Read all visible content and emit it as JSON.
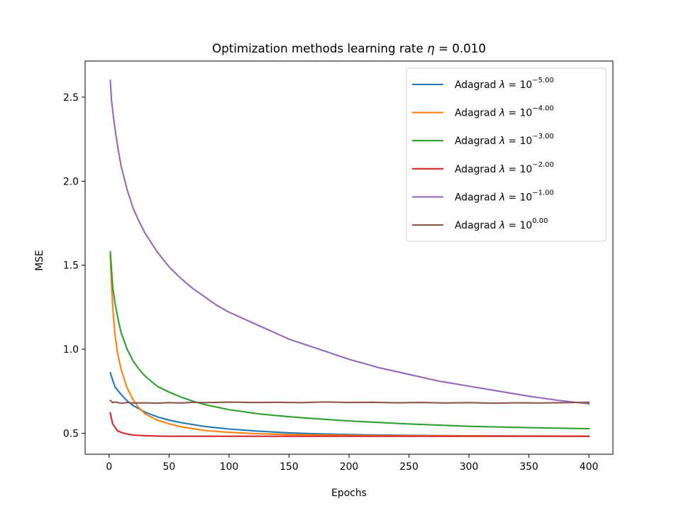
{
  "chart_data": {
    "type": "line",
    "title_text": "Optimization methods learning rate ",
    "title_symbol": "η",
    "title_rest": " = 0.010",
    "xlabel": "Epochs",
    "ylabel": "MSE",
    "xlim": [
      -20,
      420
    ],
    "ylim": [
      0.375,
      2.715
    ],
    "xticks": [
      0,
      50,
      100,
      150,
      200,
      250,
      300,
      350,
      400
    ],
    "yticks": [
      0.5,
      1.0,
      1.5,
      2.0,
      2.5
    ],
    "ytick_labels": [
      "0.5",
      "1.0",
      "1.5",
      "2.0",
      "2.5"
    ],
    "grid": false,
    "legend_position": "top-right",
    "legend_prefix": "Adagrad ",
    "legend_symbol": "λ",
    "legend_eq": " = 10",
    "series": [
      {
        "name": "Adagrad λ = 10^-5.00",
        "exponent": "−5.00",
        "color": "#1f77b4",
        "x": [
          1,
          3,
          5,
          10,
          15,
          20,
          30,
          40,
          50,
          60,
          80,
          100,
          125,
          150,
          175,
          200,
          250,
          300,
          350,
          400
        ],
        "y": [
          0.86,
          0.815,
          0.775,
          0.73,
          0.693,
          0.665,
          0.625,
          0.598,
          0.578,
          0.563,
          0.54,
          0.525,
          0.512,
          0.502,
          0.496,
          0.492,
          0.487,
          0.484,
          0.483,
          0.482
        ]
      },
      {
        "name": "Adagrad λ = 10^-4.00",
        "exponent": "−4.00",
        "color": "#ff7f0e",
        "x": [
          1,
          2,
          3,
          4,
          5,
          7,
          10,
          15,
          20,
          25,
          30,
          40,
          50,
          60,
          80,
          100,
          125,
          150,
          200,
          250,
          300,
          350,
          400
        ],
        "y": [
          1.56,
          1.38,
          1.26,
          1.16,
          1.08,
          0.98,
          0.88,
          0.77,
          0.7,
          0.65,
          0.615,
          0.578,
          0.556,
          0.538,
          0.516,
          0.505,
          0.497,
          0.492,
          0.487,
          0.485,
          0.484,
          0.483,
          0.482
        ]
      },
      {
        "name": "Adagrad λ = 10^-3.00",
        "exponent": "−3.00",
        "color": "#2ca02c",
        "x": [
          1,
          3,
          5,
          8,
          10,
          15,
          20,
          25,
          30,
          40,
          50,
          60,
          70,
          80,
          100,
          125,
          150,
          175,
          200,
          250,
          300,
          350,
          400
        ],
        "y": [
          1.58,
          1.37,
          1.27,
          1.16,
          1.1,
          1.0,
          0.93,
          0.88,
          0.84,
          0.78,
          0.745,
          0.715,
          0.69,
          0.67,
          0.64,
          0.615,
          0.598,
          0.585,
          0.573,
          0.555,
          0.541,
          0.533,
          0.527
        ]
      },
      {
        "name": "Adagrad λ = 10^-2.00",
        "exponent": "−2.00",
        "color": "#d62728",
        "x": [
          1,
          2,
          3,
          5,
          7,
          10,
          15,
          20,
          30,
          40,
          50,
          100,
          200,
          300,
          400
        ],
        "y": [
          0.62,
          0.585,
          0.555,
          0.535,
          0.515,
          0.505,
          0.495,
          0.489,
          0.485,
          0.483,
          0.482,
          0.482,
          0.482,
          0.482,
          0.482
        ]
      },
      {
        "name": "Adagrad λ = 10^-1.00",
        "exponent": "−1.00",
        "color": "#9467bd",
        "x": [
          1,
          2,
          4,
          6,
          8,
          10,
          15,
          20,
          25,
          30,
          40,
          50,
          60,
          70,
          80,
          90,
          100,
          125,
          150,
          175,
          200,
          225,
          250,
          275,
          300,
          325,
          350,
          375,
          400
        ],
        "y": [
          2.6,
          2.48,
          2.36,
          2.26,
          2.17,
          2.09,
          1.95,
          1.84,
          1.76,
          1.69,
          1.58,
          1.49,
          1.42,
          1.36,
          1.31,
          1.26,
          1.22,
          1.14,
          1.06,
          1.0,
          0.94,
          0.89,
          0.85,
          0.81,
          0.78,
          0.75,
          0.72,
          0.695,
          0.675
        ]
      },
      {
        "name": "Adagrad λ = 10^0.00",
        "exponent": "0.00",
        "color": "#8c564b",
        "x": [
          1,
          3,
          5,
          10,
          15,
          20,
          30,
          40,
          50,
          60,
          70,
          80,
          100,
          120,
          140,
          160,
          180,
          200,
          220,
          240,
          260,
          280,
          300,
          320,
          340,
          360,
          380,
          400
        ],
        "y": [
          0.695,
          0.682,
          0.686,
          0.678,
          0.683,
          0.68,
          0.681,
          0.679,
          0.682,
          0.68,
          0.684,
          0.682,
          0.685,
          0.683,
          0.684,
          0.682,
          0.686,
          0.683,
          0.684,
          0.681,
          0.683,
          0.68,
          0.682,
          0.679,
          0.681,
          0.68,
          0.682,
          0.684
        ]
      }
    ]
  }
}
